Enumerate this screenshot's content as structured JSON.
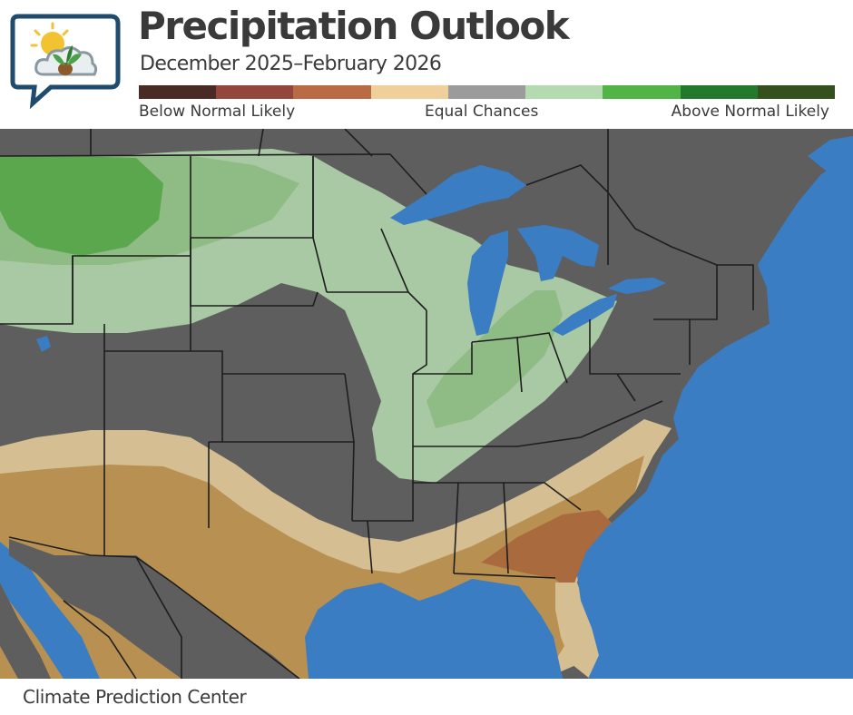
{
  "header": {
    "title": "Precipitation Outlook",
    "subtitle": "December 2025–February 2026"
  },
  "legend": {
    "swatches": [
      {
        "color": "#4a2a24"
      },
      {
        "color": "#93473c"
      },
      {
        "color": "#b86b44"
      },
      {
        "color": "#efd09a"
      },
      {
        "color": "#9b9b9b"
      },
      {
        "color": "#b4dab0"
      },
      {
        "color": "#52b447"
      },
      {
        "color": "#237a2c"
      },
      {
        "color": "#34501c"
      }
    ],
    "below_label": "Below Normal Likely",
    "equal_label": "Equal Chances",
    "above_label": "Above Normal Likely"
  },
  "map": {
    "colors": {
      "land": "#5e5e5e",
      "water": "#3a7dc3",
      "border": "#1e1e1e",
      "above_33": "#a8c9a4",
      "above_40": "#8fbb84",
      "above_50": "#5aa74d",
      "below_33": "#d5bf92",
      "below_40": "#b89152",
      "below_50": "#a96a3e"
    }
  },
  "footer": {
    "source": "Climate Prediction Center"
  },
  "logo": {
    "icon": "sun-cloud-plant-icon"
  }
}
